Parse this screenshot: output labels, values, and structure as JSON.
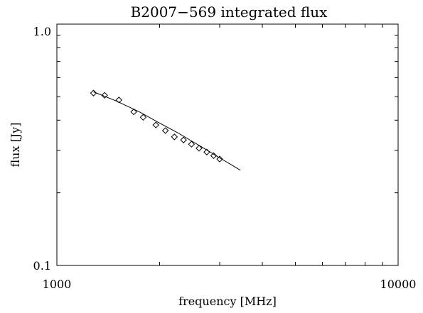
{
  "chart_data": {
    "type": "scatter",
    "title": "B2007−569 integrated flux",
    "xlabel": "frequency [MHz]",
    "ylabel": "flux [Jy]",
    "x_scale": "log",
    "y_scale": "log",
    "xlim": [
      1000,
      10000
    ],
    "ylim": [
      0.1,
      1.0
    ],
    "x_tick_labels": [
      "1000",
      "10000"
    ],
    "y_tick_labels": [
      "0.1",
      "1.0"
    ],
    "grid": false,
    "series": [
      {
        "kind": "points",
        "marker": "diamond",
        "x": [
          1280,
          1380,
          1520,
          1680,
          1790,
          1950,
          2080,
          2210,
          2350,
          2480,
          2610,
          2750,
          2880,
          3000
        ],
        "y": [
          0.518,
          0.507,
          0.485,
          0.433,
          0.411,
          0.382,
          0.362,
          0.341,
          0.331,
          0.318,
          0.306,
          0.295,
          0.285,
          0.276
        ]
      },
      {
        "kind": "line",
        "x": [
          1280,
          1500,
          1750,
          2000,
          2250,
          2500,
          2750,
          3000,
          3250,
          3450
        ],
        "y": [
          0.524,
          0.479,
          0.432,
          0.389,
          0.356,
          0.326,
          0.301,
          0.279,
          0.261,
          0.248
        ]
      }
    ]
  }
}
